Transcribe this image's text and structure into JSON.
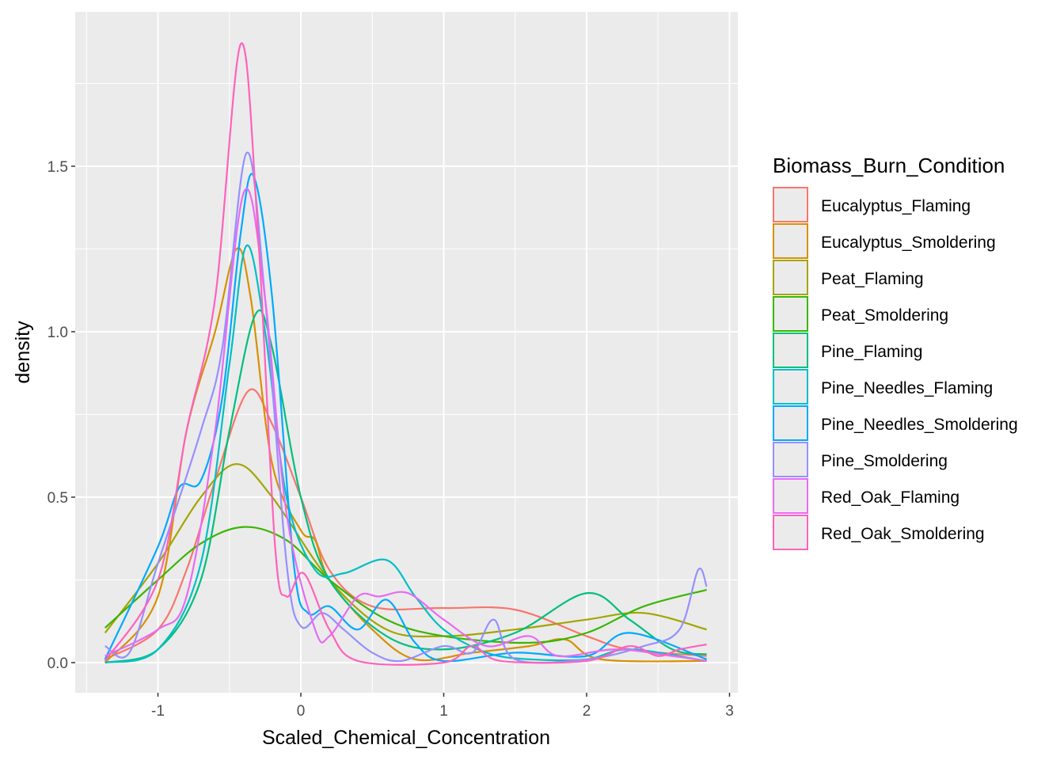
{
  "chart_data": {
    "type": "line",
    "title": "",
    "xlabel": "Scaled_Chemical_Concentration",
    "ylabel": "density",
    "xlim": [
      -1.55,
      3.05
    ],
    "ylim": [
      -0.09,
      1.97
    ],
    "xticks": [
      -1,
      0,
      1,
      2,
      3
    ],
    "xtick_labels": [
      "-1",
      "0",
      "1",
      "2",
      "3"
    ],
    "yticks": [
      0,
      0.5,
      1,
      1.5
    ],
    "ytick_labels": [
      "0.0",
      "0.5",
      "1.0",
      "1.5"
    ],
    "grid": true,
    "legend": {
      "title": "Biomass_Burn_Condition",
      "placement": "right"
    },
    "series": [
      {
        "name": "Eucalyptus_Flaming",
        "color": "#F8766D",
        "x": [
          -1.37,
          -1.0,
          -0.8,
          -0.6,
          -0.37,
          -0.2,
          0.0,
          0.2,
          0.5,
          1.0,
          1.5,
          2.0,
          2.3,
          2.84
        ],
        "y": [
          0.01,
          0.1,
          0.28,
          0.55,
          0.82,
          0.72,
          0.5,
          0.28,
          0.17,
          0.165,
          0.16,
          0.08,
          0.04,
          0.02
        ]
      },
      {
        "name": "Eucalyptus_Smoldering",
        "color": "#D89000",
        "x": [
          -1.37,
          -1.0,
          -0.8,
          -0.6,
          -0.45,
          -0.35,
          -0.2,
          0.0,
          0.1,
          0.2,
          0.5,
          0.8,
          1.2,
          1.6,
          1.85,
          2.1,
          2.84
        ],
        "y": [
          0.0,
          0.2,
          0.7,
          1.0,
          1.25,
          1.1,
          0.6,
          0.4,
          0.37,
          0.25,
          0.1,
          0.01,
          0.03,
          0.05,
          0.07,
          0.01,
          0.005
        ]
      },
      {
        "name": "Peat_Flaming",
        "color": "#A3A500",
        "x": [
          -1.37,
          -1.0,
          -0.7,
          -0.45,
          -0.2,
          0.2,
          0.6,
          1.0,
          1.5,
          2.0,
          2.4,
          2.84
        ],
        "y": [
          0.09,
          0.3,
          0.5,
          0.6,
          0.5,
          0.25,
          0.1,
          0.08,
          0.1,
          0.13,
          0.15,
          0.1
        ]
      },
      {
        "name": "Peat_Smoldering",
        "color": "#39B600",
        "x": [
          -1.37,
          -1.0,
          -0.7,
          -0.4,
          -0.1,
          0.2,
          0.6,
          1.0,
          1.6,
          2.0,
          2.4,
          2.84
        ],
        "y": [
          0.105,
          0.25,
          0.36,
          0.41,
          0.37,
          0.25,
          0.13,
          0.08,
          0.06,
          0.09,
          0.17,
          0.22
        ]
      },
      {
        "name": "Pine_Flaming",
        "color": "#00BF7D",
        "x": [
          -1.37,
          -1.0,
          -0.7,
          -0.5,
          -0.32,
          -0.2,
          0.0,
          0.2,
          0.6,
          1.0,
          1.5,
          2.0,
          2.3,
          2.6,
          2.84
        ],
        "y": [
          0.0,
          0.04,
          0.25,
          0.7,
          1.05,
          0.95,
          0.5,
          0.25,
          0.08,
          0.04,
          0.09,
          0.21,
          0.13,
          0.04,
          0.025
        ]
      },
      {
        "name": "Pine_Needles_Flaming",
        "color": "#00BFC4",
        "x": [
          -1.37,
          -1.0,
          -0.7,
          -0.5,
          -0.38,
          -0.25,
          -0.1,
          0.1,
          0.3,
          0.6,
          0.8,
          1.0,
          1.3,
          1.6,
          2.0,
          2.3,
          2.84
        ],
        "y": [
          0.0,
          0.04,
          0.3,
          0.9,
          1.26,
          1.0,
          0.5,
          0.28,
          0.27,
          0.31,
          0.2,
          0.1,
          0.03,
          0.01,
          0.01,
          0.04,
          0.005
        ]
      },
      {
        "name": "Pine_Needles_Smoldering",
        "color": "#00A9FF",
        "x": [
          -1.37,
          -1.0,
          -0.85,
          -0.7,
          -0.55,
          -0.42,
          -0.33,
          -0.2,
          -0.05,
          0.05,
          0.2,
          0.4,
          0.6,
          0.8,
          1.0,
          1.5,
          2.0,
          2.3,
          2.84
        ],
        "y": [
          0.01,
          0.35,
          0.53,
          0.55,
          0.8,
          1.3,
          1.47,
          1.1,
          0.3,
          0.15,
          0.17,
          0.1,
          0.19,
          0.06,
          0.005,
          0.03,
          0.02,
          0.09,
          0.01
        ]
      },
      {
        "name": "Pine_Smoldering",
        "color": "#9590FF",
        "x": [
          -1.37,
          -1.2,
          -1.0,
          -0.7,
          -0.55,
          -0.38,
          -0.25,
          -0.1,
          0.0,
          0.15,
          0.3,
          0.5,
          0.7,
          1.0,
          1.2,
          1.35,
          1.5,
          2.0,
          2.4,
          2.65,
          2.78,
          2.84
        ],
        "y": [
          0.05,
          0.03,
          0.3,
          0.7,
          0.95,
          1.54,
          1.1,
          0.3,
          0.11,
          0.15,
          0.1,
          0.03,
          0.005,
          0.05,
          0.03,
          0.13,
          0.01,
          0.01,
          0.05,
          0.1,
          0.28,
          0.23
        ]
      },
      {
        "name": "Red_Oak_Flaming",
        "color": "#E76BF3",
        "x": [
          -1.37,
          -1.0,
          -0.8,
          -0.6,
          -0.4,
          -0.25,
          -0.1,
          0.1,
          0.2,
          0.4,
          0.55,
          0.75,
          1.0,
          1.3,
          1.6,
          1.8,
          2.2,
          2.6,
          2.84
        ],
        "y": [
          0.02,
          0.1,
          0.2,
          0.7,
          1.42,
          1.1,
          0.45,
          0.1,
          0.08,
          0.2,
          0.2,
          0.21,
          0.13,
          0.05,
          0.08,
          0.02,
          0.04,
          0.02,
          0.005
        ]
      },
      {
        "name": "Red_Oak_Smoldering",
        "color": "#FF62BC",
        "x": [
          -1.37,
          -1.0,
          -0.8,
          -0.6,
          -0.42,
          -0.3,
          -0.18,
          -0.1,
          0.02,
          0.2,
          0.4,
          1.0,
          1.2,
          1.4,
          2.0,
          2.3,
          2.5,
          2.65,
          2.84
        ],
        "y": [
          0.005,
          0.25,
          0.7,
          1.1,
          1.87,
          1.3,
          0.35,
          0.2,
          0.27,
          0.1,
          0.005,
          0.0,
          0.05,
          0.005,
          0.005,
          0.05,
          0.02,
          0.04,
          0.055
        ]
      }
    ]
  }
}
